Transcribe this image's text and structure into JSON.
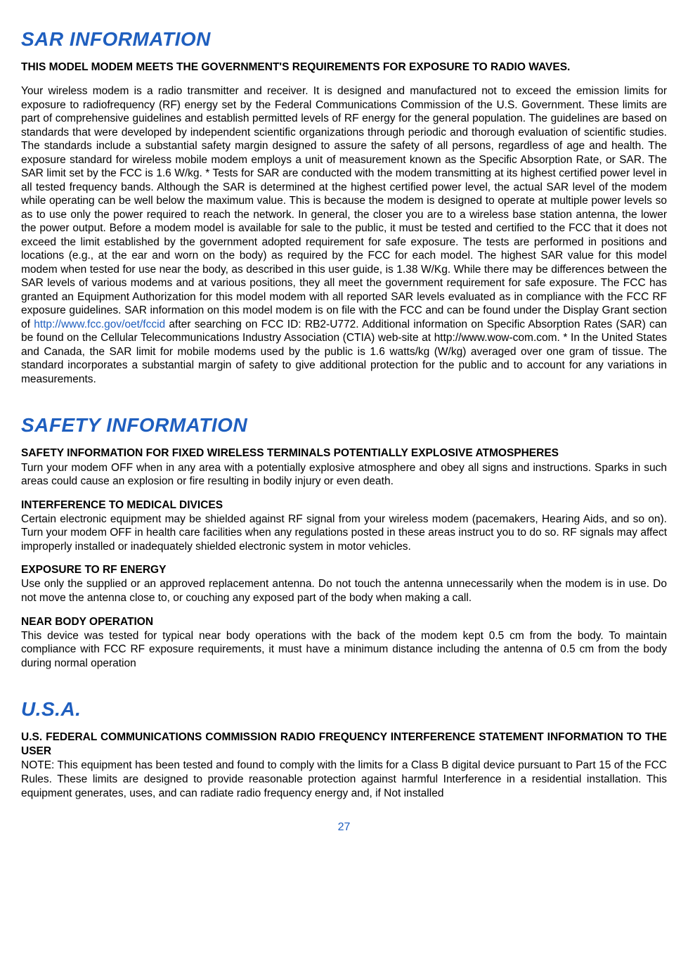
{
  "colors": {
    "heading": "#1f5fbf",
    "body_text": "#000000",
    "link": "#1f5fbf",
    "background": "#ffffff"
  },
  "typography": {
    "heading_fontsize": 28,
    "heading_style": "bold italic",
    "body_fontsize": 15.5,
    "body_lineheight": 1.26
  },
  "sections": {
    "sar": {
      "title": "SAR INFORMATION",
      "bold_intro": "THIS MODEL MODEM MEETS THE GOVERNMENT'S REQUIREMENTS FOR EXPOSURE TO RADIO WAVES.",
      "body_part1": "Your wireless modem is a radio transmitter and receiver. It is designed and manufactured not to exceed the emission limits for exposure to radiofrequency (RF) energy set by the Federal Communications Commission of the U.S. Government. These limits are part of comprehensive guidelines and establish permitted levels of RF energy for the general population. The guidelines are based on standards that were developed by independent scientific organizations through periodic and thorough evaluation of scientific studies. The standards include a substantial safety margin designed to assure the safety of all persons, regardless of age and health. The exposure standard for wireless mobile modem employs a unit of measurement known as the Specific Absorption Rate, or SAR. The SAR limit set by the FCC is 1.6 W/kg. * Tests for SAR are conducted with the modem transmitting at its highest certified power level in all tested frequency bands. Although the SAR is determined at the highest certified power level, the actual SAR level of the modem while operating can be well below the maximum value. This is because the modem is designed to operate at multiple power levels so as to use only the power required to reach the network. In general, the closer you are to a wireless base station antenna, the lower the power output. Before a modem model is available for sale to the public, it must be tested and certified to the FCC that it does not exceed the limit established by the government adopted requirement for safe exposure. The tests are performed in positions and locations (e.g., at the ear and worn on the body) as required by the FCC for each model. The highest SAR value for this model modem when tested for use near the body, as described in this user guide, is 1.38 W/Kg. While there may be differences between the SAR levels of various modems and at various positions, they all meet the government requirement for safe exposure. The FCC has granted an Equipment Authorization for this model modem with all reported SAR levels evaluated as in compliance with the FCC RF exposure guidelines. SAR information on this model modem is on file with the FCC and can be found under the Display Grant section of ",
      "link_text": "http://www.fcc.gov/oet/fccid",
      "body_part2": " after searching on FCC ID: RB2-U772. Additional information on Specific Absorption Rates (SAR) can be found on the Cellular Telecommunications Industry Association (CTIA) web-site at http://www.wow-com.com. * In the United States and Canada, the SAR limit for mobile modems used by the public is 1.6 watts/kg (W/kg) averaged over one gram of tissue. The standard incorporates a substantial margin of safety to give additional protection for the public and to account for any variations in measurements."
    },
    "safety": {
      "title": "SAFETY INFORMATION",
      "atmospheres": {
        "heading": "SAFETY INFORMATION FOR FIXED WIRELESS TERMINALS POTENTIALLY EXPLOSIVE ATMOSPHERES",
        "body": "Turn your modem OFF when in any area with a potentially explosive atmosphere and obey all signs and instructions. Sparks in such areas could cause an explosion or fire resulting in bodily injury or even death."
      },
      "medical": {
        "heading": "INTERFERENCE TO MEDICAL DIVICES",
        "body": "Certain electronic equipment may be shielded against RF signal from your wireless modem (pacemakers, Hearing Aids, and so on). Turn your modem OFF in health care facilities when any regulations posted in these areas instruct you to do so. RF signals may affect improperly installed or inadequately shielded electronic system in motor vehicles."
      },
      "rf": {
        "heading": "EXPOSURE TO RF ENERGY",
        "body": "Use only the supplied or an approved replacement antenna. Do not touch the antenna unnecessarily when the modem is in use. Do not move the antenna close to, or couching any exposed part of the body when making a call."
      },
      "near_body": {
        "heading": "NEAR BODY OPERATION",
        "body": "This device was tested for typical near body operations with the back of the modem kept 0.5 cm from the body. To maintain compliance with FCC RF exposure requirements, it must have a minimum distance including the antenna of 0.5 cm from the body during normal operation"
      }
    },
    "usa": {
      "title": "U.S.A.",
      "heading": "U.S. FEDERAL COMMUNICATIONS COMMISSION RADIO FREQUENCY INTERFERENCE STATEMENT INFORMATION TO THE USER",
      "body": "NOTE: This equipment has been tested and found to comply with the limits for a Class B digital device pursuant to Part 15 of the FCC Rules. These limits are designed to provide reasonable protection against harmful Interference in a residential installation. This equipment generates, uses, and can radiate radio frequency energy and, if Not installed"
    }
  },
  "page_number": "27"
}
